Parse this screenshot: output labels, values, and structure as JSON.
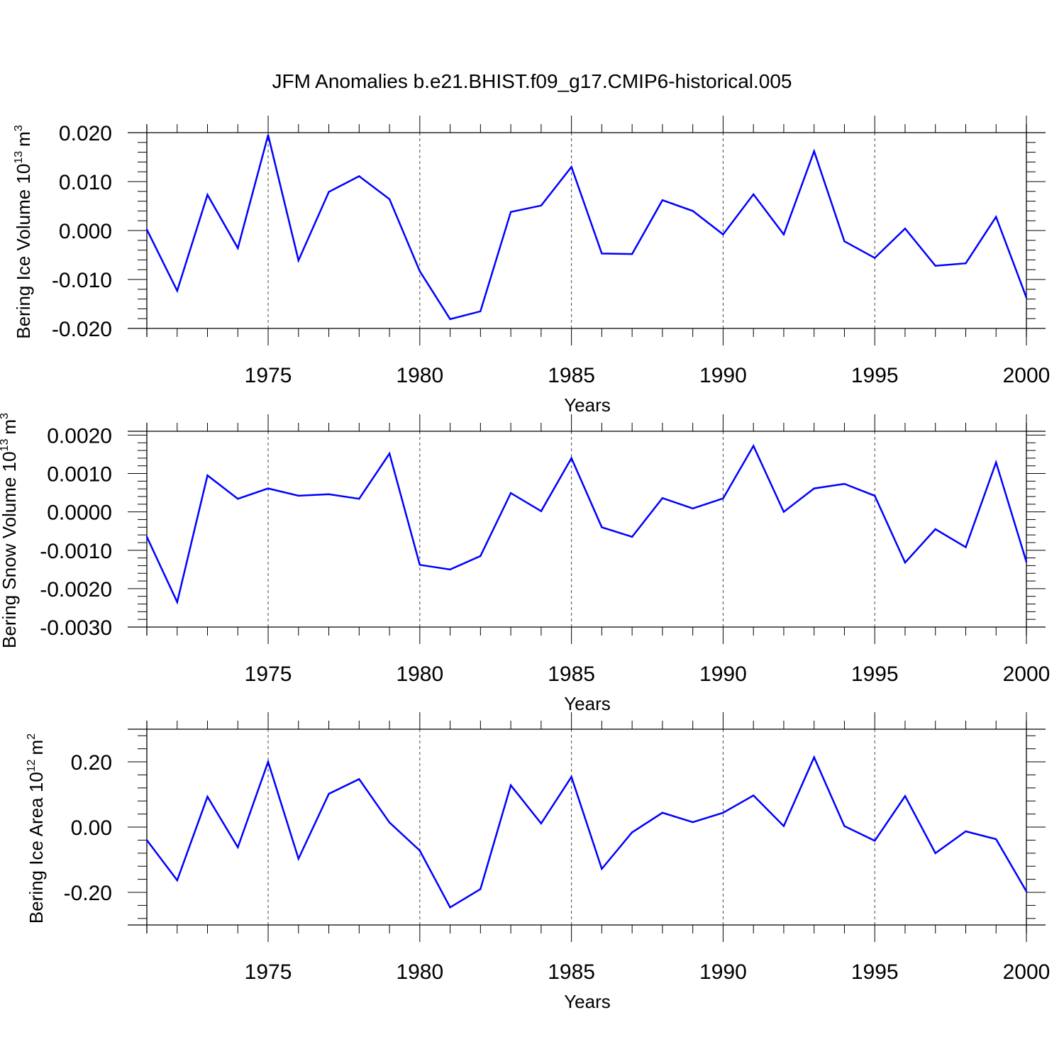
{
  "title": "JFM Anomalies b.e21.BHIST.f09_g17.CMIP6-historical.005",
  "line_color": "#0000ff",
  "chart_data": [
    {
      "type": "line",
      "ylabel_main": "Bering Ice Volume 10",
      "ylabel_exp": "13",
      "ylabel_unit": "m",
      "ylabel_unit_exp": "3",
      "xlabel": "Years",
      "xlim": [
        1971,
        2000
      ],
      "ylim": [
        -0.02,
        0.02
      ],
      "yticks": [
        -0.02,
        -0.01,
        0.0,
        0.01,
        0.02
      ],
      "ytick_labels": [
        "-0.020",
        "-0.010",
        "0.000",
        "0.010",
        "0.020"
      ],
      "xticks": [
        1975,
        1980,
        1985,
        1990,
        1995,
        2000
      ],
      "xtick_labels": [
        "1975",
        "1980",
        "1985",
        "1990",
        "1995",
        "2000"
      ],
      "x": [
        1971,
        1972,
        1973,
        1974,
        1975,
        1976,
        1977,
        1978,
        1979,
        1980,
        1981,
        1982,
        1983,
        1984,
        1985,
        1986,
        1987,
        1988,
        1989,
        1990,
        1991,
        1992,
        1993,
        1994,
        1995,
        1996,
        1997,
        1998,
        1999,
        2000
      ],
      "values": [
        0.0002,
        -0.0123,
        0.0073,
        -0.0036,
        0.0195,
        -0.0061,
        0.0079,
        0.0111,
        0.0064,
        -0.0083,
        -0.0181,
        -0.0165,
        0.0038,
        0.0051,
        0.013,
        -0.0047,
        -0.0048,
        0.0062,
        0.004,
        -0.0008,
        0.0074,
        -0.0008,
        0.0162,
        -0.0022,
        -0.0056,
        0.0004,
        -0.0072,
        -0.0067,
        0.0028,
        -0.0137
      ]
    },
    {
      "type": "line",
      "ylabel_main": "Bering Snow Volume 10",
      "ylabel_exp": "13",
      "ylabel_unit": "m",
      "ylabel_unit_exp": "3",
      "xlabel": "Years",
      "xlim": [
        1971,
        2000
      ],
      "ylim": [
        -0.003,
        0.0021
      ],
      "yticks": [
        -0.003,
        -0.002,
        -0.001,
        0.0,
        0.001,
        0.002
      ],
      "ytick_labels": [
        "-0.0030",
        "-0.0020",
        "-0.0010",
        "0.0000",
        "0.0010",
        "0.0020"
      ],
      "xticks": [
        1975,
        1980,
        1985,
        1990,
        1995,
        2000
      ],
      "xtick_labels": [
        "1975",
        "1980",
        "1985",
        "1990",
        "1995",
        "2000"
      ],
      "x": [
        1971,
        1972,
        1973,
        1974,
        1975,
        1976,
        1977,
        1978,
        1979,
        1980,
        1981,
        1982,
        1983,
        1984,
        1985,
        1986,
        1987,
        1988,
        1989,
        1990,
        1991,
        1992,
        1993,
        1994,
        1995,
        1996,
        1997,
        1998,
        1999,
        2000
      ],
      "values": [
        -0.00065,
        -0.00235,
        0.00095,
        0.00034,
        0.00061,
        0.00042,
        0.00046,
        0.00034,
        0.00152,
        -0.00138,
        -0.0015,
        -0.00115,
        0.00049,
        2e-05,
        0.0014,
        -0.0004,
        -0.00065,
        0.00036,
        9e-05,
        0.00035,
        0.00172,
        0.0,
        0.00061,
        0.00073,
        0.00042,
        -0.00132,
        -0.00045,
        -0.00092,
        0.00129,
        -0.0013
      ]
    },
    {
      "type": "line",
      "ylabel_main": "Bering Ice Area 10",
      "ylabel_exp": "12",
      "ylabel_unit": "m",
      "ylabel_unit_exp": "2",
      "xlabel": "Years",
      "xlim": [
        1971,
        2000
      ],
      "ylim": [
        -0.3,
        0.3
      ],
      "yticks": [
        -0.2,
        0.0,
        0.2
      ],
      "ytick_labels": [
        "-0.20",
        "0.00",
        "0.20"
      ],
      "xticks": [
        1975,
        1980,
        1985,
        1990,
        1995,
        2000
      ],
      "xtick_labels": [
        "1975",
        "1980",
        "1985",
        "1990",
        "1995",
        "2000"
      ],
      "x": [
        1971,
        1972,
        1973,
        1974,
        1975,
        1976,
        1977,
        1978,
        1979,
        1980,
        1981,
        1982,
        1983,
        1984,
        1985,
        1986,
        1987,
        1988,
        1989,
        1990,
        1991,
        1992,
        1993,
        1994,
        1995,
        1996,
        1997,
        1998,
        1999,
        2000
      ],
      "values": [
        -0.04,
        -0.163,
        0.093,
        -0.062,
        0.2,
        -0.097,
        0.102,
        0.147,
        0.014,
        -0.072,
        -0.246,
        -0.19,
        0.128,
        0.011,
        0.154,
        -0.128,
        -0.016,
        0.044,
        0.015,
        0.044,
        0.097,
        0.003,
        0.214,
        0.003,
        -0.042,
        0.095,
        -0.08,
        -0.013,
        -0.037,
        -0.197
      ]
    }
  ]
}
